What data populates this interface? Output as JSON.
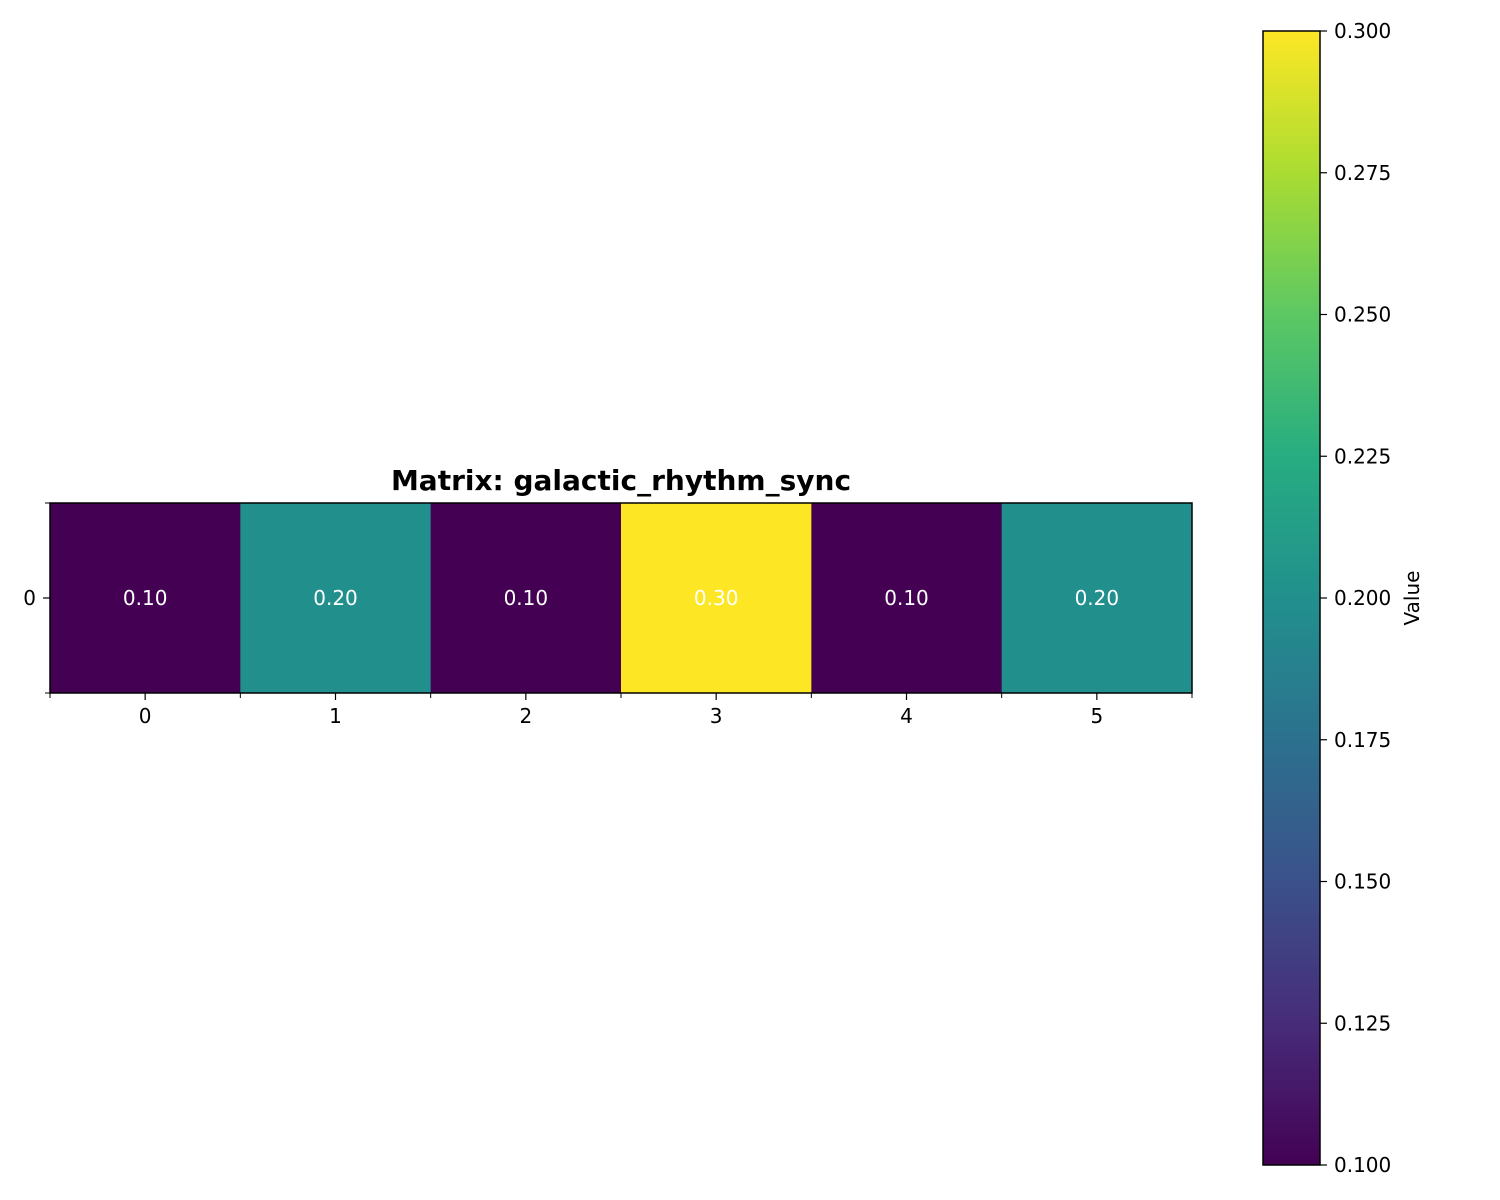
{
  "chart_data": {
    "type": "heatmap",
    "title": "Matrix: galactic_rhythm_sync",
    "x_categories": [
      "0",
      "1",
      "2",
      "3",
      "4",
      "5"
    ],
    "y_categories": [
      "0"
    ],
    "values": [
      [
        0.1,
        0.2,
        0.1,
        0.3,
        0.1,
        0.2
      ]
    ],
    "cell_labels": [
      [
        "0.10",
        "0.20",
        "0.10",
        "0.30",
        "0.10",
        "0.20"
      ]
    ],
    "colormap": "viridis",
    "colorbar": {
      "label": "Value",
      "range": [
        0.1,
        0.3
      ],
      "ticks": [
        "0.100",
        "0.125",
        "0.150",
        "0.175",
        "0.200",
        "0.225",
        "0.250",
        "0.275",
        "0.300"
      ],
      "placement": "right"
    },
    "grid": false,
    "cell_text_color": "#ffffff"
  }
}
